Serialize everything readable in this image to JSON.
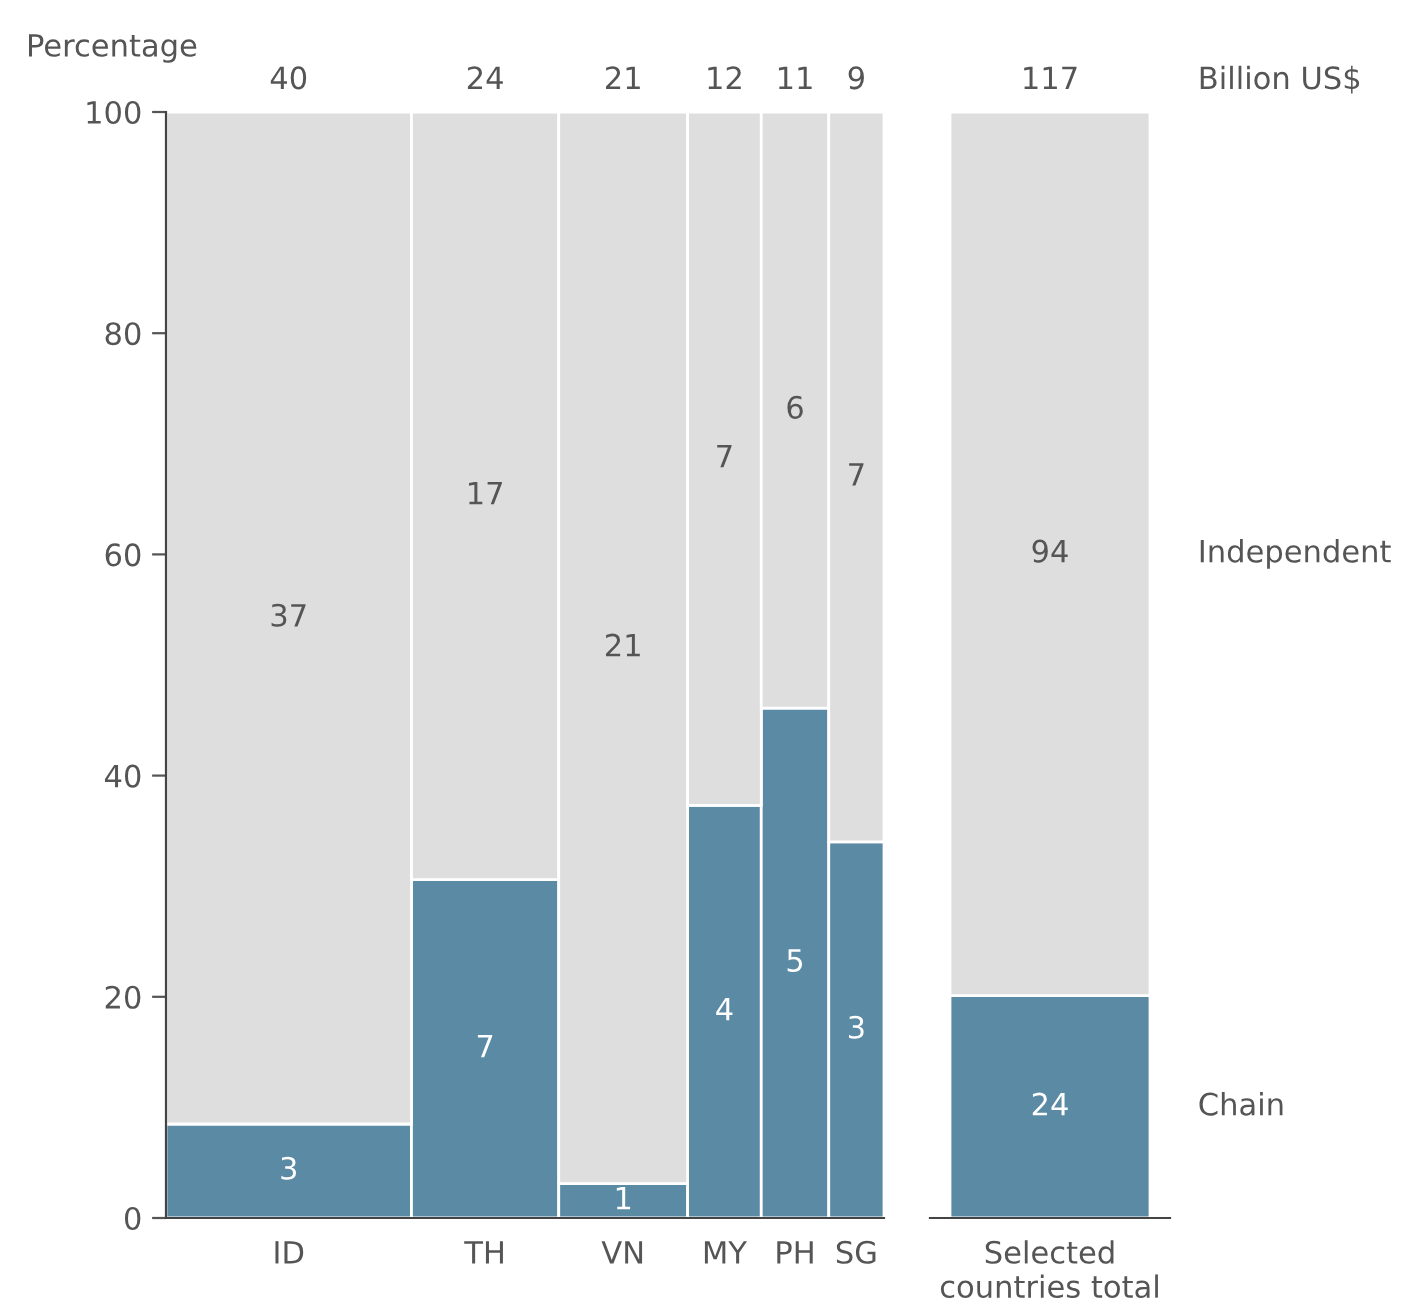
{
  "chart_data": [
    {
      "type": "bar",
      "stacked": true,
      "ylabel": "Percentage",
      "categories": [
        "ID",
        "TH",
        "VN",
        "MY",
        "PH",
        "SG"
      ],
      "ylim": [
        0,
        100
      ],
      "yticks": [
        0,
        20,
        40,
        60,
        80,
        100
      ],
      "grid": false,
      "legend": false,
      "series": [
        {
          "color": "#5b8aa5",
          "values": [
            8.5,
            30.6,
            3.1,
            37.3,
            46.1,
            34
          ]
        },
        {
          "color": "#dedede",
          "values": [
            91.5,
            69.4,
            96.9,
            62.7,
            53.9,
            66
          ]
        }
      ],
      "annotations": [
        "40",
        "24",
        "21",
        "12",
        "11",
        "9",
        "3",
        "7",
        "1",
        "4",
        "5",
        "3",
        "37",
        "17",
        "21",
        "7",
        "6",
        "7"
      ]
    },
    {
      "type": "bar",
      "stacked": true,
      "categories": [
        "Selected\ncountries total"
      ],
      "ylim": [
        0,
        100
      ],
      "tick_labels": "x",
      "grid": false,
      "legend": false,
      "series": [
        {
          "name": "Chain",
          "color": "#5b8aa5",
          "values": [
            20.1
          ]
        },
        {
          "name": "Independent",
          "color": "#dedede",
          "values": [
            79.9
          ]
        }
      ],
      "annotations": [
        "117",
        "24",
        "94",
        "Billion US$"
      ]
    }
  ]
}
